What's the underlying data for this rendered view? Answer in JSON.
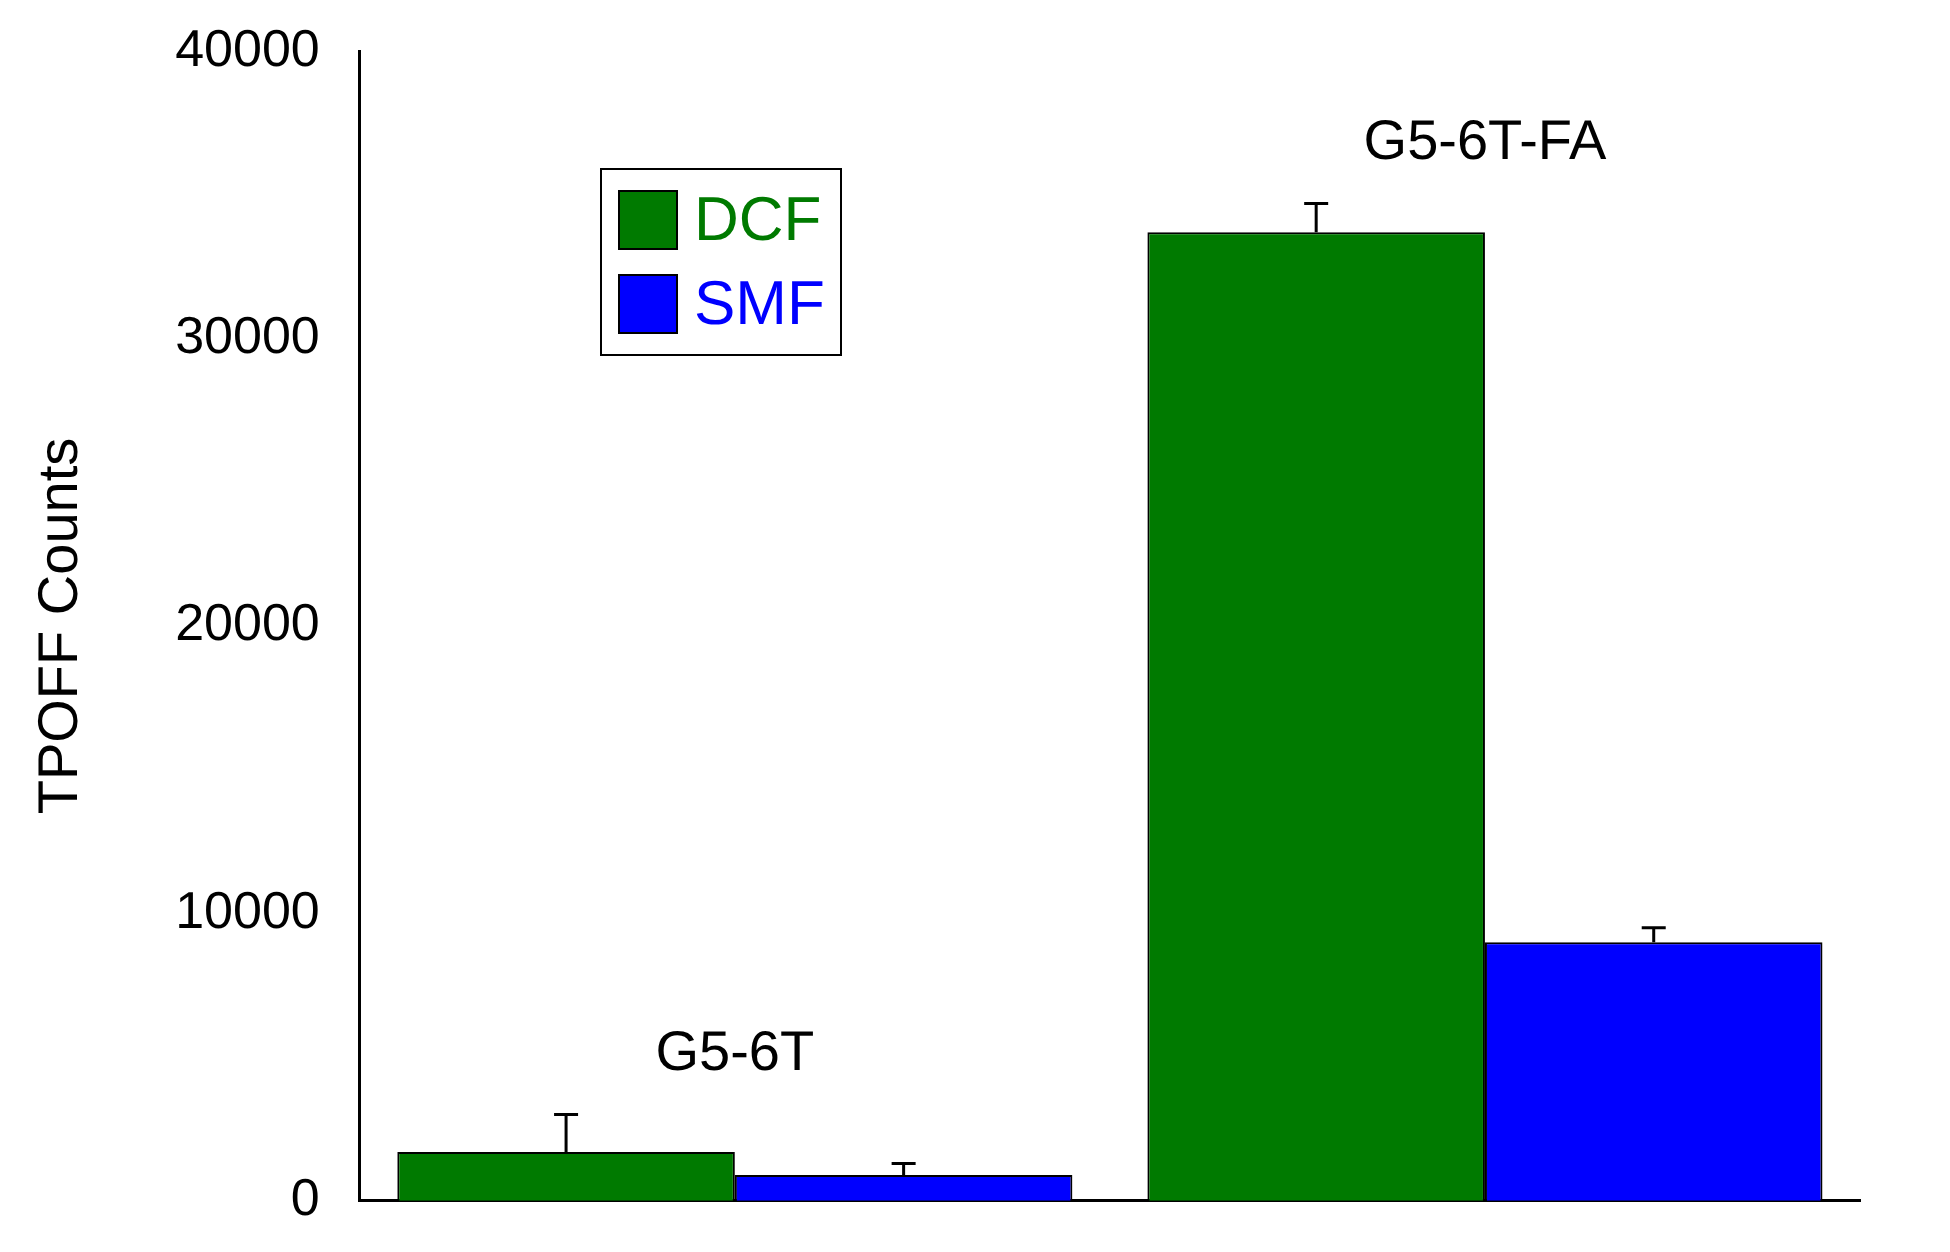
{
  "chart_data": {
    "type": "bar",
    "ylabel": "TPOFF Counts",
    "categories": [
      "G5-6T",
      "G5-6T-FA"
    ],
    "series": [
      {
        "name": "DCF",
        "color": "#007a00",
        "values": [
          1700,
          33700
        ],
        "errors": [
          [
            1700,
            3000
          ],
          [
            33700,
            34700
          ]
        ]
      },
      {
        "name": "SMF",
        "color": "#0000ff",
        "values": [
          900,
          9000
        ],
        "errors": [
          [
            900,
            1300
          ],
          [
            9000,
            9500
          ]
        ]
      }
    ],
    "ylim": [
      0,
      40000
    ],
    "yticks": [
      0,
      10000,
      20000,
      30000,
      40000
    ],
    "grid": false,
    "legend": "top left",
    "tick_labels": "y"
  }
}
